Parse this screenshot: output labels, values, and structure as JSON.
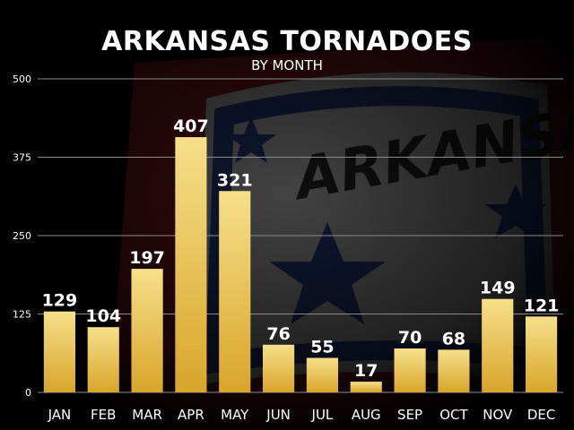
{
  "chart_data": {
    "type": "bar",
    "title": "ARKANSAS TORNADOES",
    "subtitle": "BY MONTH",
    "categories": [
      "JAN",
      "FEB",
      "MAR",
      "APR",
      "MAY",
      "JUN",
      "JUL",
      "AUG",
      "SEP",
      "OCT",
      "NOV",
      "DEC"
    ],
    "values": [
      129,
      104,
      197,
      407,
      321,
      76,
      55,
      17,
      70,
      68,
      149,
      121
    ],
    "ylim": [
      0,
      500
    ],
    "yticks": [
      0,
      125,
      250,
      375,
      500
    ],
    "grid": true,
    "data_labels": true,
    "xlabel": "",
    "ylabel": ""
  },
  "colors": {
    "background": "#000000",
    "bar_top": "#f6e08a",
    "bar_bottom": "#d9a52a",
    "text": "#ffffff",
    "grid": "#8a8a8a",
    "flag_red": "#6e1a1d",
    "flag_white": "#9a9a9a",
    "flag_blue": "#1c2a5a"
  }
}
